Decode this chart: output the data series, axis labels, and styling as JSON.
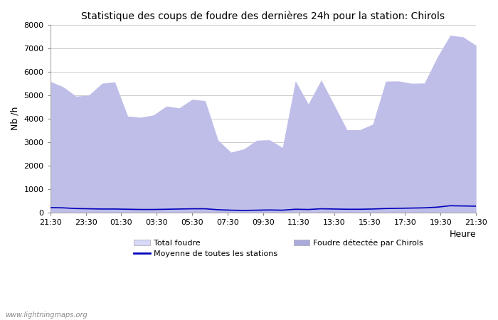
{
  "title": "Statistique des coups de foudre des dernières 24h pour la station: Chirols",
  "xlabel": "Heure",
  "ylabel": "Nb /h",
  "watermark": "www.lightningmaps.org",
  "ylim": [
    0,
    8000
  ],
  "yticks": [
    0,
    1000,
    2000,
    3000,
    4000,
    5000,
    6000,
    7000,
    8000
  ],
  "x_labels": [
    "21:30",
    "23:30",
    "01:30",
    "03:30",
    "05:30",
    "07:30",
    "09:30",
    "11:30",
    "13:30",
    "15:30",
    "17:30",
    "19:30",
    "21:30"
  ],
  "total_foudre_color": "#d8d8f8",
  "chirols_color": "#aaaadd",
  "line_color": "#0000bb",
  "bg_color": "#ffffff",
  "grid_color": "#cccccc",
  "total_foudre": [
    5580,
    5350,
    4950,
    5000,
    5500,
    5560,
    4100,
    4050,
    4150,
    4530,
    4450,
    4820,
    4760,
    3080,
    2560,
    2700,
    3070,
    3090,
    2760,
    5600,
    4620,
    5640,
    4580,
    3520,
    3520,
    3760,
    5590,
    5600,
    5500,
    5510,
    6620,
    7550,
    7480,
    7120
  ],
  "chirols": [
    5580,
    5350,
    4950,
    5000,
    5500,
    5560,
    4100,
    4050,
    4150,
    4530,
    4450,
    4820,
    4760,
    3080,
    2560,
    2700,
    3070,
    3090,
    2760,
    5600,
    4620,
    5640,
    4580,
    3520,
    3520,
    3760,
    5590,
    5600,
    5500,
    5510,
    6620,
    7550,
    7480,
    7120
  ],
  "moyenne": [
    200,
    190,
    160,
    150,
    140,
    140,
    130,
    120,
    120,
    130,
    140,
    150,
    150,
    110,
    90,
    80,
    90,
    100,
    90,
    130,
    120,
    150,
    140,
    130,
    130,
    140,
    160,
    170,
    180,
    190,
    220,
    280,
    270,
    260
  ],
  "n_points": 34,
  "legend_total": "Total foudre",
  "legend_chirols": "Foudre détectée par Chirols",
  "legend_moyenne": "Moyenne de toutes les stations"
}
